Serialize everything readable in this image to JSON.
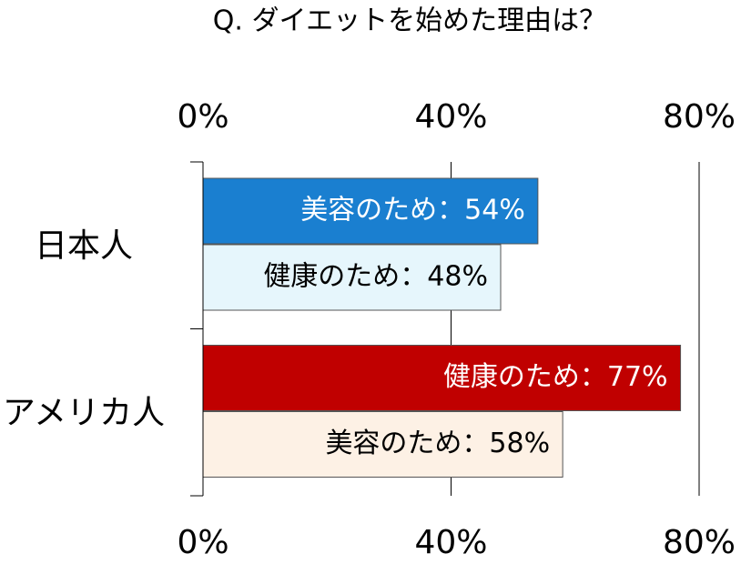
{
  "chart_data": {
    "type": "bar",
    "orientation": "horizontal",
    "title": "Q. ダイエットを始めた理由は？",
    "groups": [
      {
        "name": "日本人",
        "bars": [
          {
            "value": 54,
            "value_label": "美容のため：54%",
            "color": "#1a7fd0",
            "text_color": "#ffffff"
          },
          {
            "value": 48,
            "value_label": "健康のため：48%",
            "color": "#e6f6fc",
            "text_color": "#000000"
          }
        ]
      },
      {
        "name": "アメリカ人",
        "bars": [
          {
            "value": 77,
            "value_label": "健康のため：77%",
            "color": "#c00000",
            "text_color": "#ffffff"
          },
          {
            "value": 58,
            "value_label": "美容のため：58%",
            "color": "#fdf1e5",
            "text_color": "#000000"
          }
        ]
      }
    ],
    "xlim": [
      0,
      80
    ],
    "xticks": [
      {
        "value": 0,
        "label": "0%"
      },
      {
        "value": 40,
        "label": "40%"
      },
      {
        "value": 80,
        "label": "80%"
      }
    ],
    "grid": true
  }
}
